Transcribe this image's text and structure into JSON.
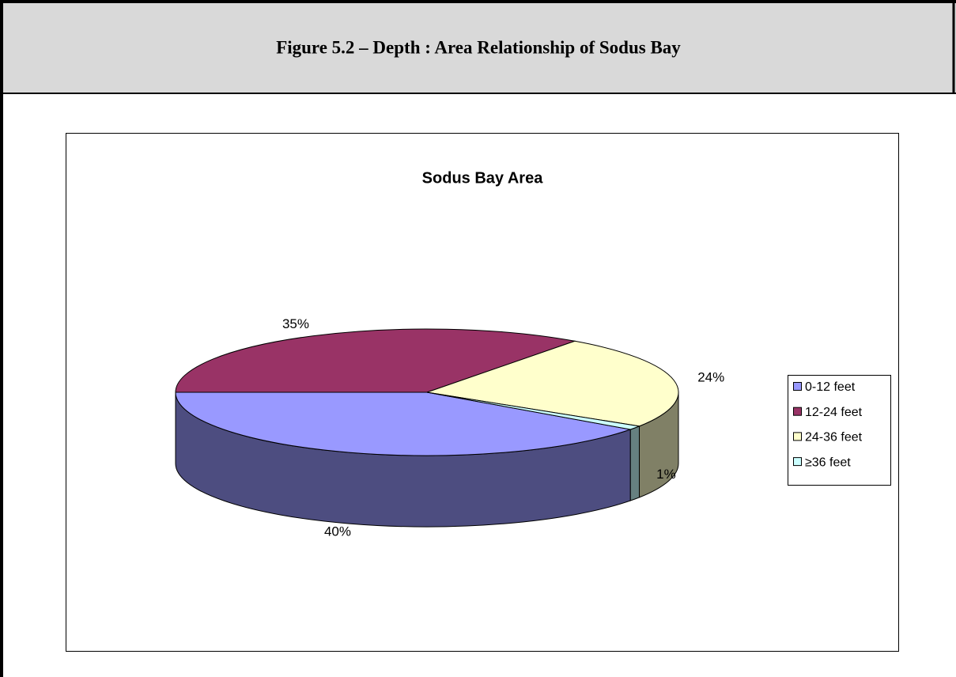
{
  "header": {
    "title": "Figure 5.2 – Depth : Area Relationship of Sodus Bay"
  },
  "chart_data": {
    "type": "pie3d",
    "title": "Sodus Bay Area",
    "categories": [
      "0-12 feet",
      "12-24 feet",
      "24-36 feet",
      "≥36 feet"
    ],
    "values": [
      40,
      35,
      24,
      1
    ],
    "value_labels": [
      "40%",
      "35%",
      "24%",
      "1%"
    ],
    "colors": [
      "#9999ff",
      "#993366",
      "#ffffcc",
      "#ccffff"
    ],
    "legend": "right"
  }
}
